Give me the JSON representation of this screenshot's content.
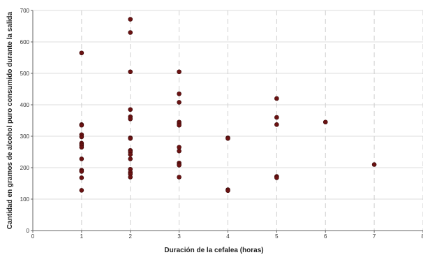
{
  "chart_data": {
    "type": "scatter",
    "xlabel": "Duración de la cefalea (horas)",
    "ylabel": "Cantidad en gramos de alcohol puro consumido durante la salida",
    "xlim": [
      0,
      8
    ],
    "ylim": [
      0,
      700
    ],
    "x_ticks": [
      "0",
      "1",
      "2",
      "3",
      "4",
      "5",
      "6",
      "7",
      "8"
    ],
    "y_ticks": [
      "0",
      "100",
      "200",
      "300",
      "400",
      "500",
      "600",
      "700"
    ],
    "grid": {
      "horizontal": true,
      "vertical_dashed": true
    },
    "marker_color": "#6b1212",
    "points": [
      {
        "x": 1,
        "y": 565
      },
      {
        "x": 1,
        "y": 337
      },
      {
        "x": 1,
        "y": 335
      },
      {
        "x": 1,
        "y": 305
      },
      {
        "x": 1,
        "y": 298
      },
      {
        "x": 1,
        "y": 278
      },
      {
        "x": 1,
        "y": 272
      },
      {
        "x": 1,
        "y": 265
      },
      {
        "x": 1,
        "y": 228
      },
      {
        "x": 1,
        "y": 192
      },
      {
        "x": 1,
        "y": 188
      },
      {
        "x": 1,
        "y": 168
      },
      {
        "x": 1,
        "y": 128
      },
      {
        "x": 2,
        "y": 672
      },
      {
        "x": 2,
        "y": 630
      },
      {
        "x": 2,
        "y": 505
      },
      {
        "x": 2,
        "y": 385
      },
      {
        "x": 2,
        "y": 362
      },
      {
        "x": 2,
        "y": 355
      },
      {
        "x": 2,
        "y": 295
      },
      {
        "x": 2,
        "y": 293
      },
      {
        "x": 2,
        "y": 255
      },
      {
        "x": 2,
        "y": 250
      },
      {
        "x": 2,
        "y": 242
      },
      {
        "x": 2,
        "y": 228
      },
      {
        "x": 2,
        "y": 195
      },
      {
        "x": 2,
        "y": 185
      },
      {
        "x": 2,
        "y": 180
      },
      {
        "x": 2,
        "y": 170
      },
      {
        "x": 3,
        "y": 505
      },
      {
        "x": 3,
        "y": 435
      },
      {
        "x": 3,
        "y": 408
      },
      {
        "x": 3,
        "y": 345
      },
      {
        "x": 3,
        "y": 340
      },
      {
        "x": 3,
        "y": 335
      },
      {
        "x": 3,
        "y": 265
      },
      {
        "x": 3,
        "y": 253
      },
      {
        "x": 3,
        "y": 215
      },
      {
        "x": 3,
        "y": 210
      },
      {
        "x": 3,
        "y": 208
      },
      {
        "x": 3,
        "y": 170
      },
      {
        "x": 4,
        "y": 295
      },
      {
        "x": 4,
        "y": 293
      },
      {
        "x": 4,
        "y": 130
      },
      {
        "x": 4,
        "y": 127
      },
      {
        "x": 5,
        "y": 420
      },
      {
        "x": 5,
        "y": 360
      },
      {
        "x": 5,
        "y": 337
      },
      {
        "x": 5,
        "y": 172
      },
      {
        "x": 5,
        "y": 168
      },
      {
        "x": 6,
        "y": 345
      },
      {
        "x": 7,
        "y": 210
      }
    ]
  }
}
